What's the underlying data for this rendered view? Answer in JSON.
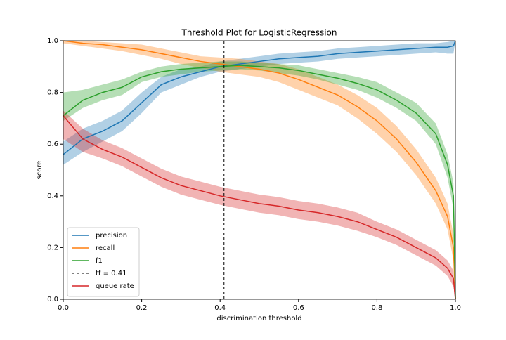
{
  "chart_data": {
    "type": "line",
    "title": "Threshold Plot for LogisticRegression",
    "xlabel": "discrimination threshold",
    "ylabel": "score",
    "x": [
      0,
      0.05,
      0.1,
      0.15,
      0.2,
      0.25,
      0.3,
      0.35,
      0.4,
      0.45,
      0.5,
      0.55,
      0.6,
      0.65,
      0.7,
      0.75,
      0.8,
      0.85,
      0.9,
      0.95,
      0.98,
      0.995,
      1.0
    ],
    "xlim": [
      0,
      1
    ],
    "ylim": [
      0,
      1
    ],
    "xticks": [
      {
        "value": 0,
        "label": "0.0"
      },
      0.2,
      0.4,
      0.6,
      0.8,
      {
        "value": 1,
        "label": "1.0"
      }
    ],
    "yticks": [
      {
        "value": 0,
        "label": "0.0"
      },
      0.2,
      0.4,
      0.6,
      0.8,
      {
        "value": 1,
        "label": "1.0"
      }
    ],
    "legend": "lower left",
    "series": [
      {
        "name": "precision",
        "color": "#1f77b4",
        "values": [
          0.56,
          0.62,
          0.65,
          0.69,
          0.76,
          0.83,
          0.86,
          0.88,
          0.9,
          0.91,
          0.92,
          0.93,
          0.935,
          0.94,
          0.95,
          0.955,
          0.96,
          0.965,
          0.97,
          0.975,
          0.975,
          0.98,
          1.0
        ],
        "lower": [
          0.52,
          0.57,
          0.61,
          0.65,
          0.72,
          0.8,
          0.83,
          0.86,
          0.88,
          0.89,
          0.9,
          0.91,
          0.915,
          0.92,
          0.93,
          0.935,
          0.94,
          0.945,
          0.95,
          0.955,
          0.95,
          0.95,
          1.0
        ],
        "upper": [
          0.61,
          0.66,
          0.69,
          0.73,
          0.8,
          0.86,
          0.89,
          0.9,
          0.92,
          0.93,
          0.94,
          0.95,
          0.955,
          0.96,
          0.97,
          0.975,
          0.98,
          0.985,
          0.99,
          0.99,
          0.995,
          1.0,
          1.0
        ]
      },
      {
        "name": "recall",
        "color": "#ff7f0e",
        "values": [
          1.0,
          0.99,
          0.985,
          0.975,
          0.965,
          0.95,
          0.935,
          0.92,
          0.91,
          0.9,
          0.89,
          0.875,
          0.85,
          0.82,
          0.79,
          0.745,
          0.69,
          0.62,
          0.53,
          0.42,
          0.32,
          0.2,
          0.0
        ],
        "lower": [
          0.99,
          0.98,
          0.97,
          0.96,
          0.945,
          0.93,
          0.91,
          0.895,
          0.88,
          0.87,
          0.86,
          0.84,
          0.81,
          0.78,
          0.75,
          0.7,
          0.64,
          0.57,
          0.48,
          0.37,
          0.27,
          0.15,
          0.0
        ],
        "upper": [
          1.0,
          1.0,
          0.995,
          0.99,
          0.985,
          0.97,
          0.955,
          0.94,
          0.935,
          0.93,
          0.92,
          0.91,
          0.89,
          0.86,
          0.83,
          0.79,
          0.74,
          0.67,
          0.58,
          0.47,
          0.37,
          0.25,
          0.0
        ]
      },
      {
        "name": "f1",
        "color": "#2ca02c",
        "values": [
          0.71,
          0.77,
          0.8,
          0.82,
          0.86,
          0.88,
          0.89,
          0.895,
          0.9,
          0.905,
          0.9,
          0.895,
          0.885,
          0.87,
          0.855,
          0.835,
          0.81,
          0.77,
          0.72,
          0.64,
          0.52,
          0.4,
          0.0
        ],
        "lower": [
          0.69,
          0.74,
          0.77,
          0.79,
          0.84,
          0.86,
          0.87,
          0.88,
          0.885,
          0.89,
          0.885,
          0.875,
          0.865,
          0.85,
          0.83,
          0.81,
          0.78,
          0.74,
          0.69,
          0.6,
          0.47,
          0.35,
          0.0
        ],
        "upper": [
          0.8,
          0.81,
          0.83,
          0.85,
          0.88,
          0.9,
          0.91,
          0.915,
          0.92,
          0.92,
          0.915,
          0.91,
          0.905,
          0.89,
          0.875,
          0.86,
          0.84,
          0.8,
          0.76,
          0.68,
          0.56,
          0.45,
          0.0
        ]
      },
      {
        "name": "queue rate",
        "color": "#d62728",
        "values": [
          0.71,
          0.62,
          0.58,
          0.55,
          0.51,
          0.47,
          0.44,
          0.42,
          0.4,
          0.385,
          0.37,
          0.36,
          0.345,
          0.335,
          0.32,
          0.3,
          0.27,
          0.24,
          0.2,
          0.16,
          0.12,
          0.08,
          0.0
        ],
        "lower": [
          0.62,
          0.57,
          0.545,
          0.515,
          0.475,
          0.435,
          0.405,
          0.385,
          0.365,
          0.35,
          0.335,
          0.325,
          0.31,
          0.3,
          0.285,
          0.265,
          0.24,
          0.21,
          0.17,
          0.13,
          0.09,
          0.05,
          0.0
        ],
        "upper": [
          0.73,
          0.66,
          0.615,
          0.585,
          0.545,
          0.505,
          0.475,
          0.455,
          0.435,
          0.42,
          0.405,
          0.395,
          0.38,
          0.37,
          0.355,
          0.335,
          0.3,
          0.27,
          0.23,
          0.19,
          0.15,
          0.11,
          0.0
        ]
      }
    ],
    "threshold": {
      "value": 0.41,
      "label": "tf = 0.41",
      "color": "#000000"
    }
  }
}
